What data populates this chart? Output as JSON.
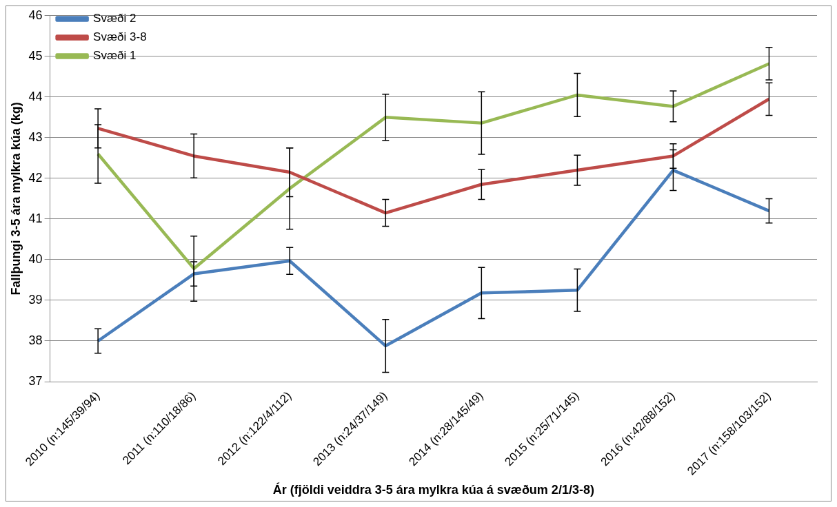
{
  "chart_data": {
    "type": "line",
    "xlabel": "Ár (fjöldi veiddra 3-5 ára mylkra kúa á svæðum 2/1/3-8)",
    "ylabel": "Fallþungi 3-5 ára mylkra kúa (kg)",
    "categories": [
      "2010 (n:145/39/94)",
      "2011 (n:110/18/86)",
      "2012 (n:122/4/112)",
      "2013 (n:24/37/149)",
      "2014 (n:28/145/49)",
      "2015 (n:25/71/145)",
      "2016 (n:42/88/152)",
      "2017 (n:158/103/152)"
    ],
    "series": [
      {
        "name": "Svæði 2",
        "color": "#4a7ebb",
        "values": [
          38.0,
          39.65,
          39.97,
          37.88,
          39.18,
          39.25,
          42.2,
          41.2
        ],
        "errors": [
          0.3,
          0.3,
          0.33,
          0.65,
          0.63,
          0.52,
          0.5,
          0.3
        ]
      },
      {
        "name": "Svæði 3-8",
        "color": "#be4b48",
        "values": [
          43.23,
          42.55,
          42.15,
          41.15,
          41.85,
          42.2,
          42.55,
          43.95
        ],
        "errors": [
          0.48,
          0.54,
          0.6,
          0.33,
          0.37,
          0.37,
          0.3,
          0.4
        ]
      },
      {
        "name": "Svæði 1",
        "color": "#98b954",
        "values": [
          42.6,
          39.78,
          41.75,
          43.5,
          43.36,
          44.05,
          43.77,
          44.82
        ],
        "errors": [
          0.72,
          0.8,
          1.0,
          0.57,
          0.77,
          0.53,
          0.38,
          0.4
        ]
      }
    ],
    "ylim": [
      37,
      46
    ],
    "yticks": [
      37,
      38,
      39,
      40,
      41,
      42,
      43,
      44,
      45,
      46
    ],
    "grid": "y",
    "legend": "top left",
    "marker": "none",
    "line_style": "solid"
  }
}
